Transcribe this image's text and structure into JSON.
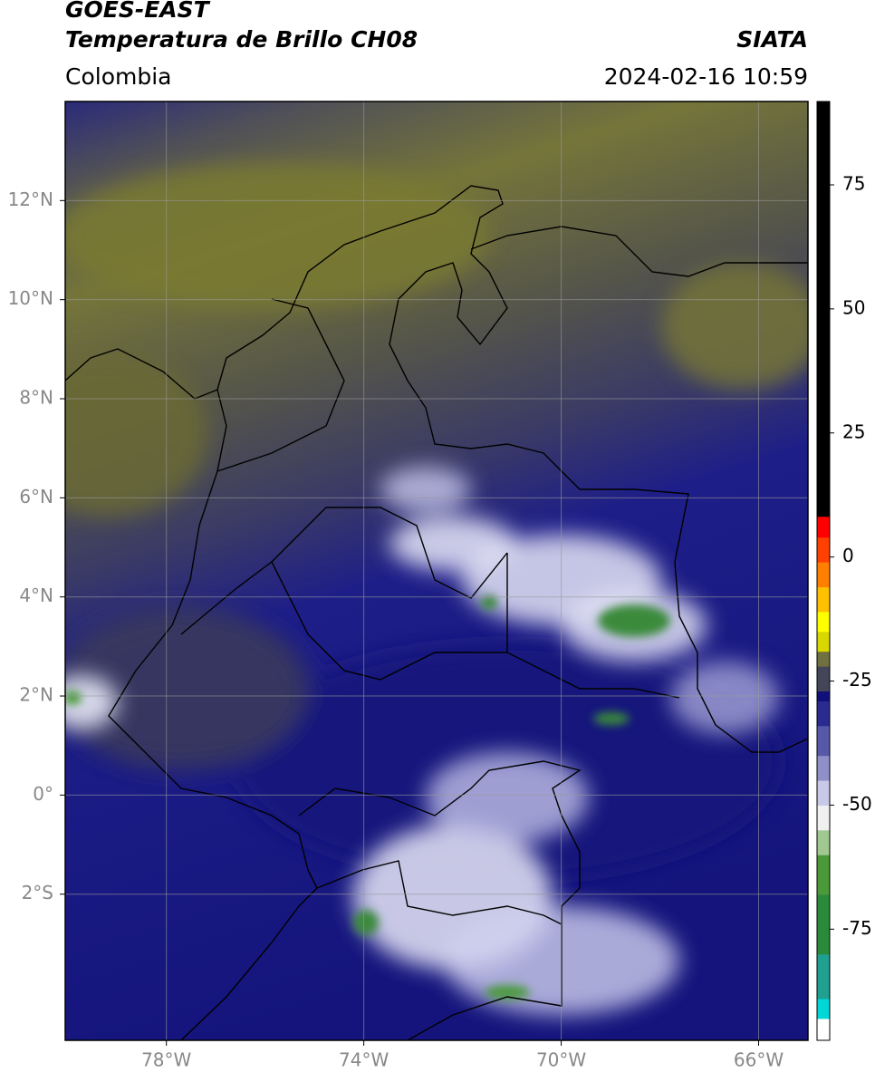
{
  "header": {
    "satellite": "GOES-EAST",
    "product": "Temperatura de Brillo CH08",
    "source": "SIATA",
    "region": "Colombia",
    "datetime": "2024-02-16 10:59"
  },
  "map": {
    "xlim": [
      -80.05,
      -65.0
    ],
    "ylim": [
      -4.95,
      14.0
    ],
    "grid": true,
    "xticks": [
      {
        "value": -78,
        "label": "78°W"
      },
      {
        "value": -74,
        "label": "74°W"
      },
      {
        "value": -70,
        "label": "70°W"
      },
      {
        "value": -66,
        "label": "66°W"
      }
    ],
    "yticks": [
      {
        "value": 12,
        "label": "12°N"
      },
      {
        "value": 10,
        "label": "10°N"
      },
      {
        "value": 8,
        "label": "8°N"
      },
      {
        "value": 6,
        "label": "6°N"
      },
      {
        "value": 4,
        "label": "4°N"
      },
      {
        "value": 2,
        "label": "2°N"
      },
      {
        "value": 0,
        "label": "0°"
      },
      {
        "value": -2,
        "label": "2°S"
      }
    ]
  },
  "colorbar": {
    "ylim": [
      -97.4,
      91.8
    ],
    "yticks": [
      75,
      50,
      25,
      0,
      -25,
      -50,
      -75
    ],
    "bounds": [
      -97.4,
      -93,
      -89,
      -80,
      -68,
      -60,
      -55,
      -50,
      -45,
      -40,
      -34,
      -29,
      -27,
      -22,
      -19,
      -15,
      -11,
      -6,
      -1,
      4,
      8.2,
      91.8
    ],
    "colors": [
      "#ffffff",
      "#00d8d8",
      "#20a090",
      "#2a8a3a",
      "#4a9a3a",
      "#a0c890",
      "#f0f0f0",
      "#c8c8e8",
      "#9090c8",
      "#5858a8",
      "#2a2a90",
      "#10107a",
      "#45455a",
      "#707040",
      "#d8d800",
      "#ffff00",
      "#ffc000",
      "#ff8000",
      "#ff4000",
      "#ff0000",
      "#000000"
    ]
  }
}
